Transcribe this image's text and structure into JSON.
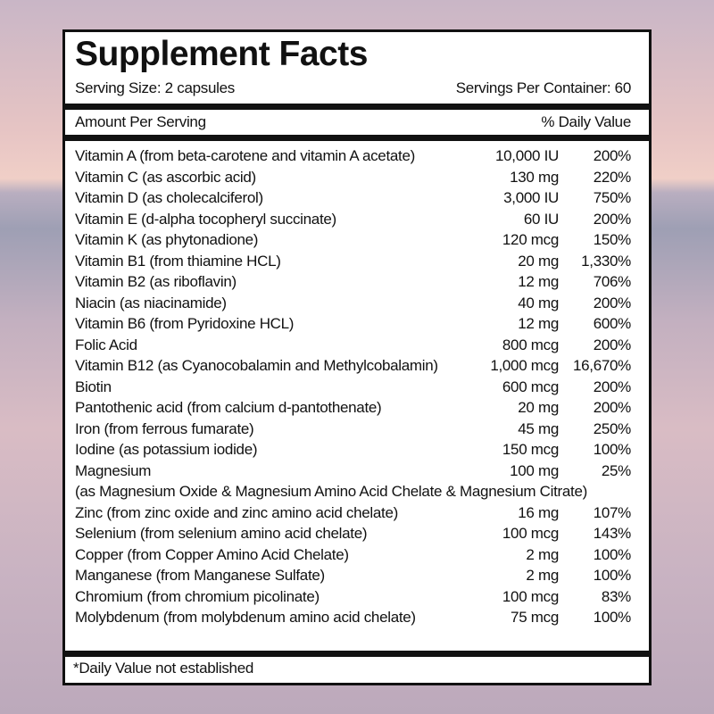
{
  "header": {
    "title": "Supplement Facts",
    "serving_size": "Serving Size: 2 capsules",
    "servings_per_container": "Servings Per Container: 60"
  },
  "table": {
    "amount_header": "Amount Per Serving",
    "dv_header": "% Daily Value",
    "rows": [
      {
        "name": "Vitamin A (from beta-carotene and vitamin A acetate)",
        "amount": "10,000 IU",
        "dv": "200%"
      },
      {
        "name": "Vitamin C (as ascorbic acid)",
        "amount": "130 mg",
        "dv": "220%"
      },
      {
        "name": "Vitamin D (as cholecalciferol)",
        "amount": "3,000 IU",
        "dv": "750%"
      },
      {
        "name": "Vitamin E (d-alpha tocopheryl succinate)",
        "amount": "60 IU",
        "dv": "200%"
      },
      {
        "name": "Vitamin K (as phytonadione)",
        "amount": "120 mcg",
        "dv": "150%"
      },
      {
        "name": "Vitamin B1 (from thiamine HCL)",
        "amount": "20 mg",
        "dv": "1,330%"
      },
      {
        "name": "Vitamin B2 (as riboflavin)",
        "amount": "12 mg",
        "dv": "706%"
      },
      {
        "name": "Niacin (as niacinamide)",
        "amount": "40 mg",
        "dv": "200%"
      },
      {
        "name": "Vitamin B6 (from Pyridoxine HCL)",
        "amount": "12 mg",
        "dv": "600%"
      },
      {
        "name": "Folic Acid",
        "amount": "800 mcg",
        "dv": "200%"
      },
      {
        "name": "Vitamin B12 (as Cyanocobalamin and Methylcobalamin)",
        "amount": "1,000 mcg",
        "dv": "16,670%"
      },
      {
        "name": "Biotin",
        "amount": "600 mcg",
        "dv": "200%"
      },
      {
        "name": "Pantothenic acid (from calcium d-pantothenate)",
        "amount": "20 mg",
        "dv": "200%"
      },
      {
        "name": "Iron (from ferrous fumarate)",
        "amount": "45 mg",
        "dv": "250%"
      },
      {
        "name": "Iodine (as potassium iodide)",
        "amount": "150 mcg",
        "dv": "100%"
      },
      {
        "name": "Magnesium",
        "amount": "100 mg",
        "dv": "25%",
        "note": "(as Magnesium Oxide & Magnesium Amino Acid Chelate & Magnesium Citrate)"
      },
      {
        "name": "Zinc (from zinc oxide and zinc amino acid chelate)",
        "amount": "16 mg",
        "dv": "107%"
      },
      {
        "name": "Selenium (from selenium amino acid chelate)",
        "amount": "100 mcg",
        "dv": "143%"
      },
      {
        "name": "Copper (from Copper Amino Acid Chelate)",
        "amount": "2 mg",
        "dv": "100%"
      },
      {
        "name": "Manganese (from Manganese Sulfate)",
        "amount": "2 mg",
        "dv": "100%"
      },
      {
        "name": "Chromium (from chromium picolinate)",
        "amount": "100 mcg",
        "dv": "83%"
      },
      {
        "name": "Molybdenum (from molybdenum amino acid chelate)",
        "amount": "75 mcg",
        "dv": "100%"
      }
    ]
  },
  "footnote": "*Daily Value not established"
}
